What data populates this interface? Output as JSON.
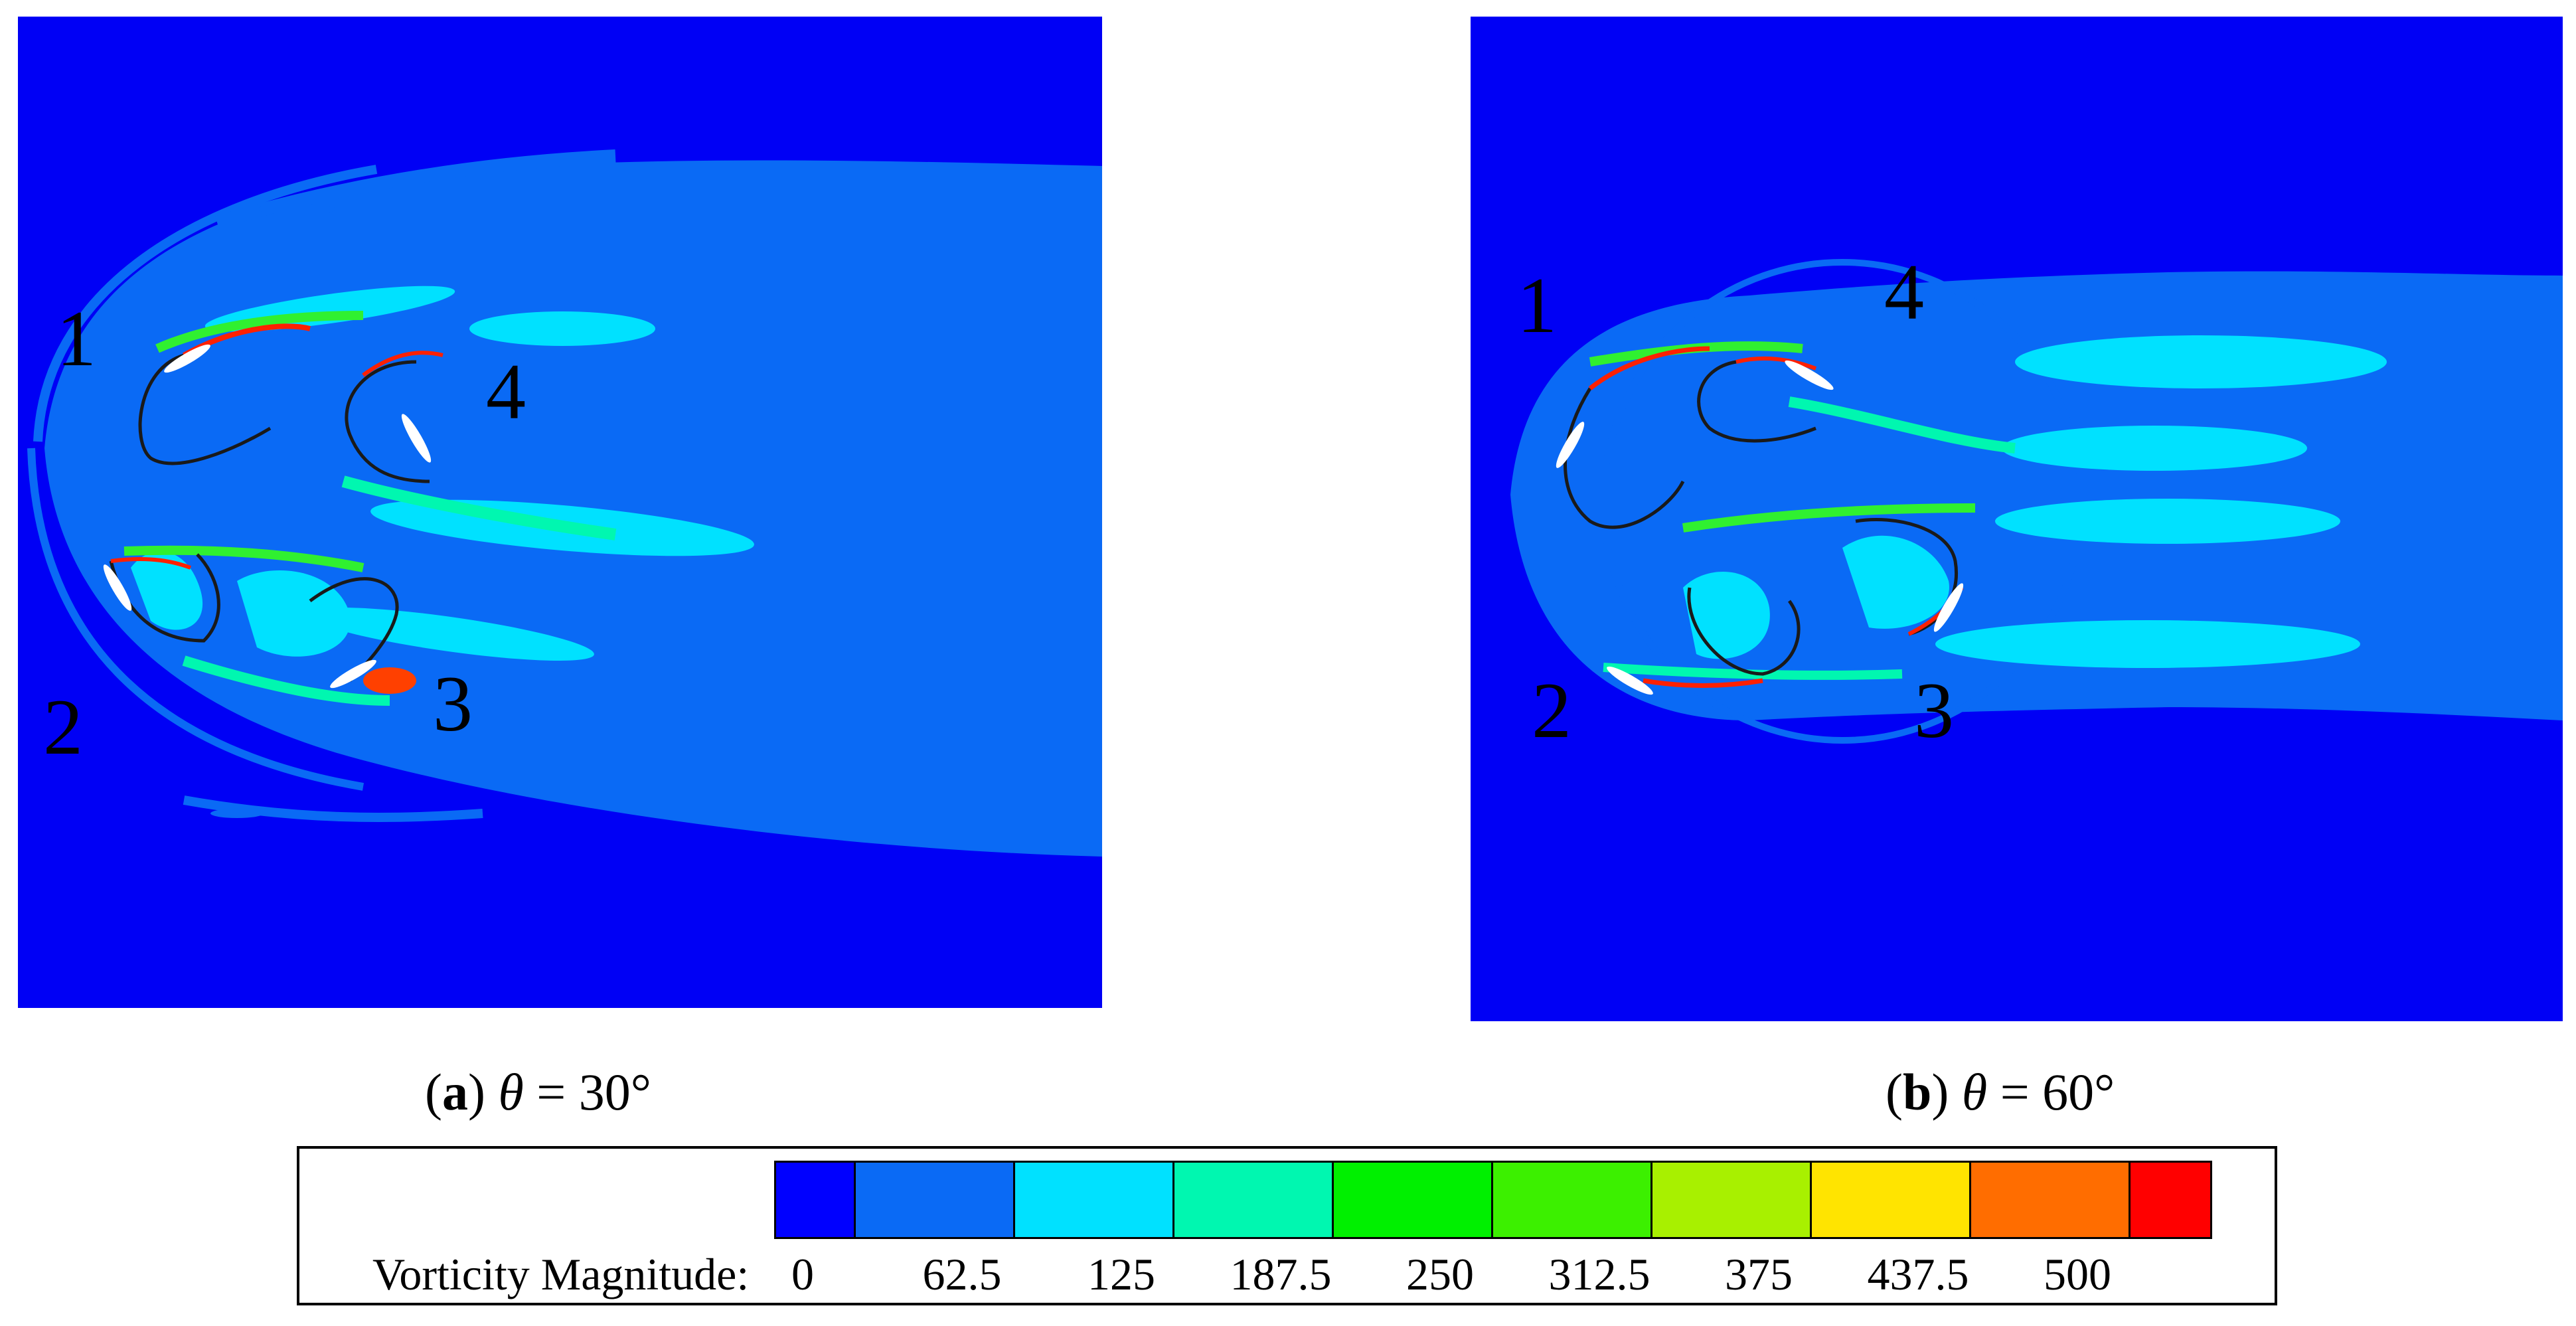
{
  "panels": [
    {
      "caption_letter": "a",
      "caption_symbol": "θ",
      "caption_rest": " = 30°",
      "blade_labels": [
        "1",
        "2",
        "3",
        "4"
      ]
    },
    {
      "caption_letter": "b",
      "caption_symbol": "θ",
      "caption_rest": " = 60°",
      "blade_labels": [
        "1",
        "2",
        "3",
        "4"
      ]
    }
  ],
  "legend": {
    "title": "Vorticity Magnitude:",
    "ticks": [
      "0",
      "62.5",
      "125",
      "187.5",
      "250",
      "312.5",
      "375",
      "437.5",
      "500"
    ],
    "colors": [
      "#0000ff",
      "#0a6af5",
      "#00e1ff",
      "#00f7b0",
      "#00f000",
      "#3cf000",
      "#a8f000",
      "#ffe400",
      "#ff6d00",
      "#ff0000"
    ]
  },
  "colors": {
    "background_field": "#0000f5",
    "wake": "#0a6af5",
    "cyan": "#00e1ff",
    "teal": "#00f7b0",
    "green": "#30f030",
    "red": "#ff2000",
    "blade": "#ffffff"
  }
}
